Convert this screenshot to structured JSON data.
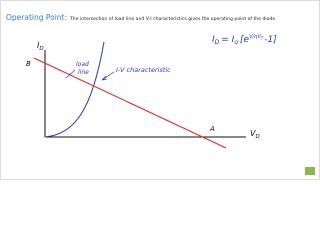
{
  "header": {
    "title": "Operating Point:",
    "text": "The intersection of load line and V-I characteristics gives the operating point of the diode."
  },
  "diagram": {
    "y_axis_label": {
      "main": "I",
      "sub": "D"
    },
    "x_axis_label": {
      "main": "V",
      "sub": "D"
    },
    "point_b": "B",
    "point_a": "A",
    "load_line_label": [
      "load",
      "line"
    ],
    "curve_label": "I-V characteristic"
  },
  "equation": {
    "lhs": "I",
    "lhs_sub": "D",
    "equals": "= I",
    "rhs_sub": "o",
    "open": "[e",
    "exponent": "V/ηV",
    "exponent_sub": "T",
    "close": "-1]"
  }
}
